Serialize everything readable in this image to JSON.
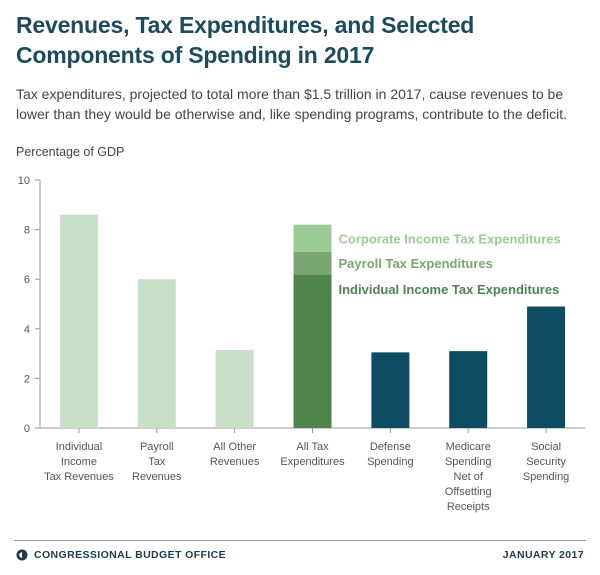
{
  "header": {
    "title_line1": "Revenues, Tax Expenditures, and Selected",
    "title_line2": "Components of Spending in 2017",
    "subtitle": "Tax expenditures, projected to total more than $1.5 trillion in 2017, cause revenues to be lower than they would be otherwise and, like spending programs, contribute to the deficit."
  },
  "footer": {
    "organization": "CONGRESSIONAL BUDGET OFFICE",
    "date": "JANUARY 2017",
    "logo_icon": "cbo-seal-icon"
  },
  "colors": {
    "revenue": "#c8e0c8",
    "corporate": "#9ccb98",
    "payroll": "#7ba674",
    "individual": "#4f844c",
    "spending": "#0e4c63",
    "title": "#1d4b5b"
  },
  "chart_data": {
    "type": "bar",
    "ylabel": "Percentage of GDP",
    "ylim": [
      0,
      10
    ],
    "yticks": [
      0,
      2,
      4,
      6,
      8,
      10
    ],
    "grid": false,
    "categories": [
      [
        "Individual",
        "Income",
        "Tax Revenues"
      ],
      [
        "Payroll",
        "Tax",
        "Revenues"
      ],
      [
        "All Other",
        "Revenues"
      ],
      [
        "All Tax",
        "Expenditures"
      ],
      [
        "Defense",
        "Spending"
      ],
      [
        "Medicare",
        "Spending",
        "Net of",
        "Offsetting",
        "Receipts"
      ],
      [
        "Social",
        "Security",
        "Spending"
      ]
    ],
    "bars": [
      {
        "value": 8.6,
        "group": "revenue"
      },
      {
        "value": 6.0,
        "group": "revenue"
      },
      {
        "value": 3.15,
        "group": "revenue"
      },
      {
        "value": 8.2,
        "group": "tax_expenditures",
        "stack": [
          {
            "name": "Individual Income Tax Expenditures",
            "value": 6.2,
            "color_key": "individual"
          },
          {
            "name": "Payroll Tax Expenditures",
            "value": 0.9,
            "color_key": "payroll"
          },
          {
            "name": "Corporate Income Tax Expenditures",
            "value": 1.1,
            "color_key": "corporate"
          }
        ]
      },
      {
        "value": 3.05,
        "group": "spending"
      },
      {
        "value": 3.1,
        "group": "spending"
      },
      {
        "value": 4.9,
        "group": "spending"
      }
    ],
    "annotations": [
      {
        "text": "Corporate Income Tax Expenditures",
        "color_key": "corporate"
      },
      {
        "text": "Payroll Tax Expenditures",
        "color_key": "payroll"
      },
      {
        "text": "Individual Income Tax Expenditures",
        "color_key": "individual"
      }
    ]
  }
}
